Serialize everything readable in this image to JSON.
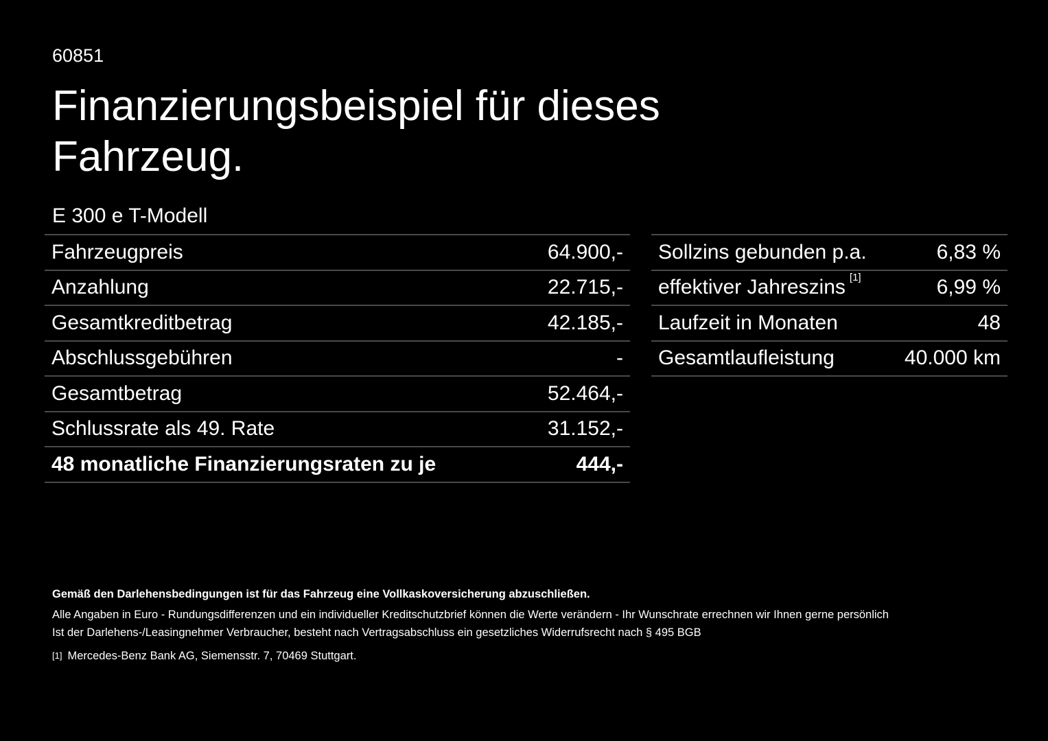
{
  "header": {
    "code": "60851",
    "title": "Finanzierungsbeispiel für dieses Fahrzeug.",
    "model": "E 300 e T-Modell"
  },
  "left_table": [
    {
      "label": "Fahrzeugpreis",
      "value": "64.900,-"
    },
    {
      "label": "Anzahlung",
      "value": "22.715,-"
    },
    {
      "label": "Gesamtkreditbetrag",
      "value": "42.185,-"
    },
    {
      "label": "Abschlussgebühren",
      "value": "-"
    },
    {
      "label": "Gesamtbetrag",
      "value": "52.464,-"
    },
    {
      "label": "Schlussrate als 49. Rate",
      "value": "31.152,-"
    },
    {
      "label": "48 monatliche Finanzierungsraten zu je",
      "value": "444,-"
    }
  ],
  "right_table": [
    {
      "label": "Sollzins gebunden p.a.",
      "value": "6,83 %"
    },
    {
      "label": "effektiver Jahreszins",
      "sup": "[1]",
      "value": "6,99 %"
    },
    {
      "label": "Laufzeit in Monaten",
      "value": "48"
    },
    {
      "label": "Gesamtlaufleistung",
      "value": "40.000 km"
    }
  ],
  "notes": {
    "bold": "Gemäß den Darlehensbedingungen ist für das Fahrzeug eine Vollkaskoversicherung abzuschließen.",
    "line1": "Alle Angaben in Euro - Rundungsdifferenzen und ein individueller Kreditschutzbrief können die Werte verändern - Ihr Wunschrate errechnen wir Ihnen gerne persönlich",
    "line2": "Ist der Darlehens-/Leasingnehmer Verbraucher, besteht nach Vertragsabschluss ein gesetzliches Widerrufsrecht nach § 495 BGB",
    "footnote_marker": "[1]",
    "footnote": "Mercedes-Benz Bank AG, Siemensstr. 7, 70469 Stuttgart."
  }
}
